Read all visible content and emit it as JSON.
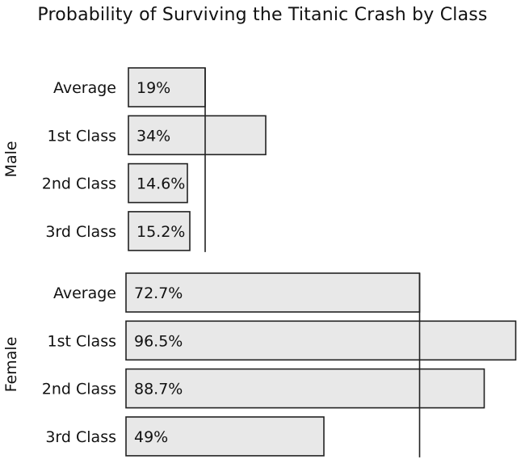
{
  "chart_data": {
    "type": "bar",
    "orientation": "horizontal",
    "title": "Probability of Surviving the Titanic Crash by Class",
    "panels": [
      {
        "group": "Male",
        "categories": [
          "Average",
          "1st Class",
          "2nd Class",
          "3rd Class"
        ],
        "values": [
          19,
          34,
          14.6,
          15.2
        ],
        "value_labels": [
          "19%",
          "34%",
          "14.6%",
          "15.2%"
        ],
        "reference_line": 19
      },
      {
        "group": "Female",
        "categories": [
          "Average",
          "1st Class",
          "2nd Class",
          "3rd Class"
        ],
        "values": [
          72.7,
          96.5,
          88.7,
          49
        ],
        "value_labels": [
          "72.7%",
          "96.5%",
          "88.7%",
          "49%"
        ],
        "reference_line": 72.7
      }
    ],
    "xlim": [
      0,
      100
    ],
    "grid": false,
    "legend": "none",
    "colors": {
      "bar_fill": "#e8e8e8",
      "bar_stroke": "#222222",
      "text": "#111111"
    }
  }
}
